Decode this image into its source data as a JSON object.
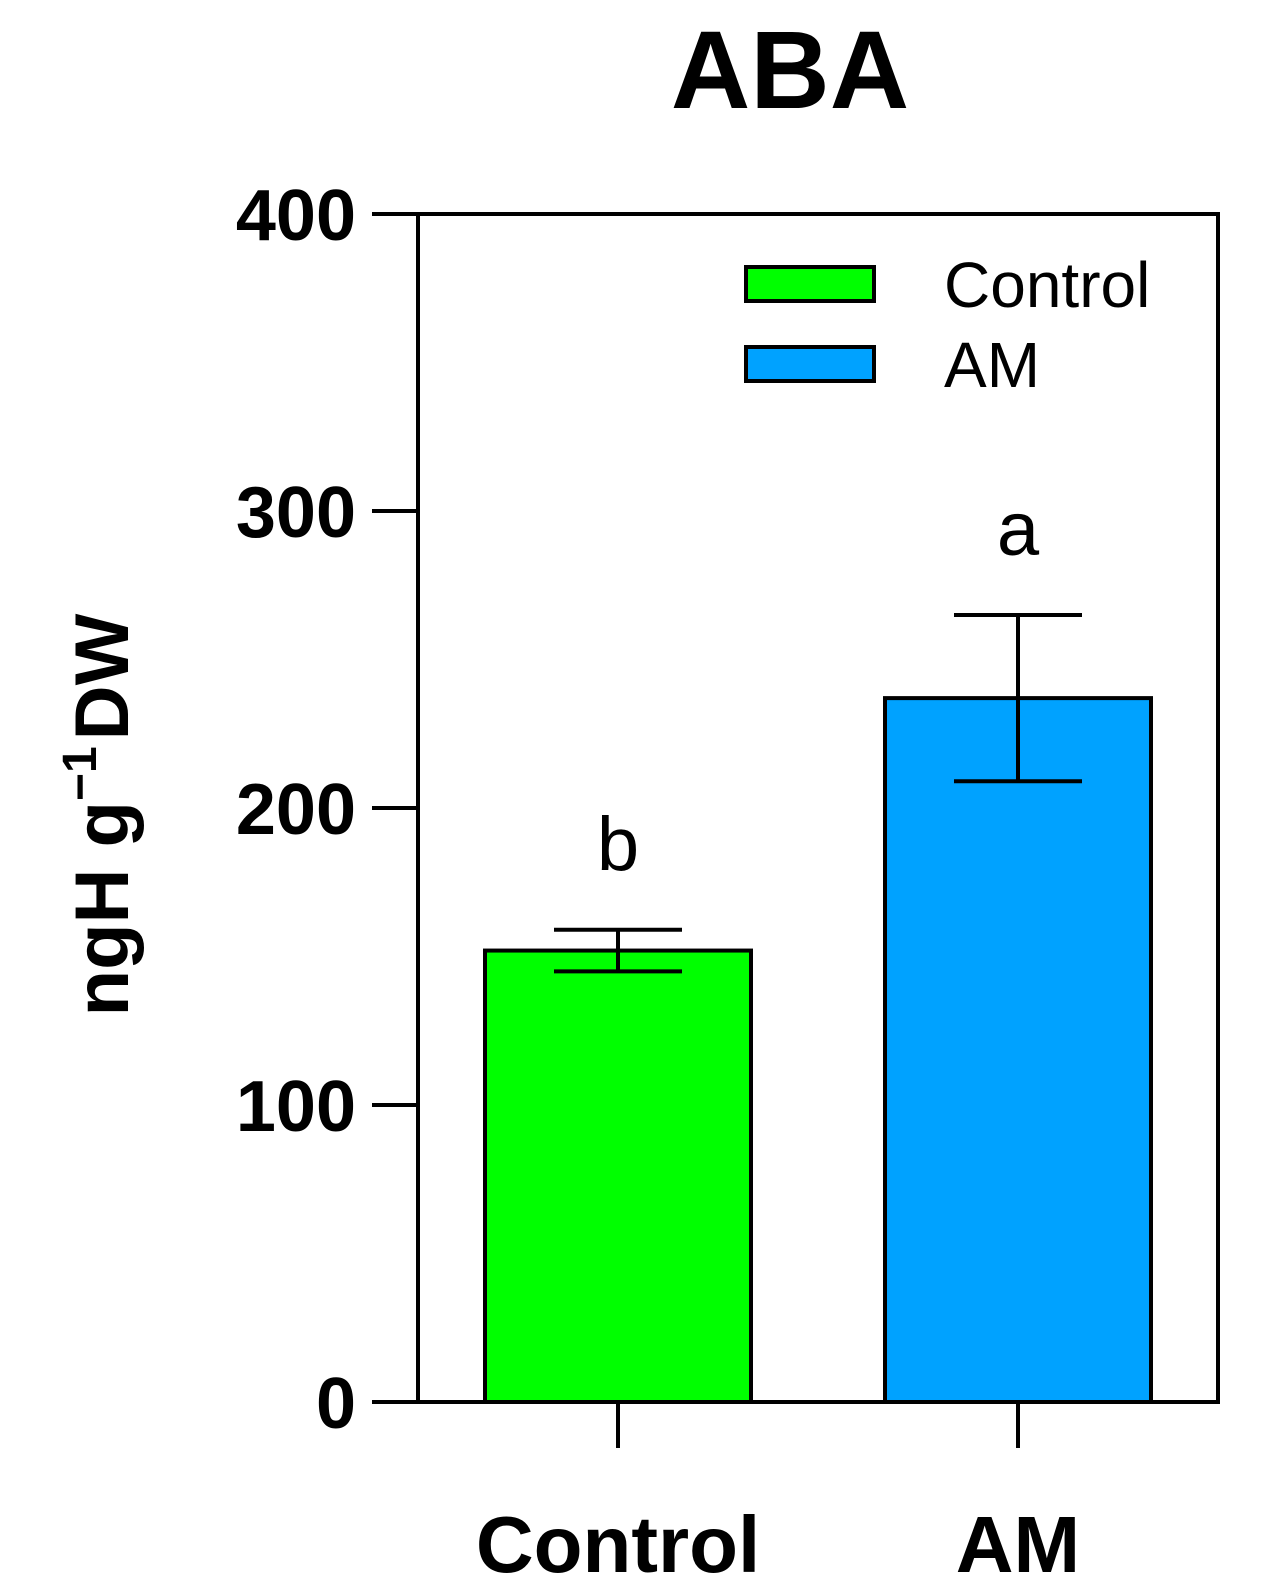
{
  "chart_data": {
    "type": "bar",
    "title": "ABA",
    "ylabel": {
      "main": "ngH g",
      "superscript": "−1",
      "suffix": "DW"
    },
    "xlabel": "",
    "categories": [
      "Control",
      "AM"
    ],
    "values": [
      152,
      237
    ],
    "errors": [
      7,
      28
    ],
    "significance": [
      "b",
      "a"
    ],
    "colors": [
      "#00ff00",
      "#00a2ff"
    ],
    "ylim": [
      0,
      400
    ],
    "yticks": [
      0,
      100,
      200,
      300,
      400
    ],
    "ytick_labels": [
      "0",
      "100",
      "200",
      "300",
      "400"
    ],
    "legend": {
      "position": "top-right",
      "entries": [
        {
          "label": "Control",
          "color": "#00ff00"
        },
        {
          "label": "AM",
          "color": "#00a2ff"
        }
      ]
    },
    "grid": false
  }
}
